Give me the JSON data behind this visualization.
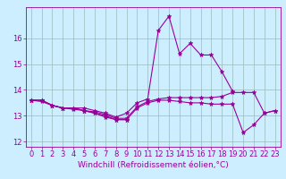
{
  "title": "",
  "xlabel": "Windchill (Refroidissement éolien,°C)",
  "background_color": "#cceeff",
  "line_color": "#990099",
  "grid_color": "#99bbbb",
  "x": [
    0,
    1,
    2,
    3,
    4,
    5,
    6,
    7,
    8,
    9,
    10,
    11,
    12,
    13,
    14,
    15,
    16,
    17,
    18,
    19,
    20,
    21,
    22,
    23
  ],
  "series": [
    [
      13.6,
      13.6,
      13.4,
      13.3,
      13.3,
      13.3,
      13.2,
      13.1,
      12.95,
      13.1,
      13.5,
      13.65,
      16.3,
      16.85,
      15.4,
      15.8,
      15.35,
      15.35,
      14.7,
      13.95,
      null,
      null,
      null,
      null
    ],
    [
      13.6,
      13.6,
      13.4,
      13.3,
      13.3,
      13.2,
      13.1,
      13.0,
      12.85,
      12.85,
      13.3,
      13.5,
      13.6,
      13.6,
      13.55,
      13.5,
      13.5,
      13.45,
      13.45,
      13.45,
      12.35,
      12.65,
      13.1,
      13.2
    ],
    [
      13.6,
      13.6,
      13.4,
      13.3,
      13.3,
      13.2,
      13.15,
      13.05,
      12.9,
      12.9,
      13.35,
      13.55,
      13.65,
      13.7,
      13.7,
      13.7,
      13.7,
      13.7,
      13.75,
      13.9,
      13.9,
      13.9,
      13.1,
      13.2
    ],
    [
      13.6,
      13.55,
      13.4,
      13.3,
      13.25,
      13.2,
      13.1,
      12.95,
      12.85,
      12.85,
      null,
      null,
      null,
      null,
      null,
      null,
      null,
      null,
      null,
      null,
      null,
      null,
      null,
      null
    ]
  ],
  "ylim": [
    11.8,
    17.2
  ],
  "xlim": [
    -0.5,
    23.5
  ],
  "yticks": [
    12,
    13,
    14,
    15,
    16
  ],
  "xticks": [
    0,
    1,
    2,
    3,
    4,
    5,
    6,
    7,
    8,
    9,
    10,
    11,
    12,
    13,
    14,
    15,
    16,
    17,
    18,
    19,
    20,
    21,
    22,
    23
  ],
  "tick_fontsize": 6,
  "xlabel_fontsize": 6.5,
  "marker": "*",
  "markersize": 3.5,
  "linewidth": 0.8
}
